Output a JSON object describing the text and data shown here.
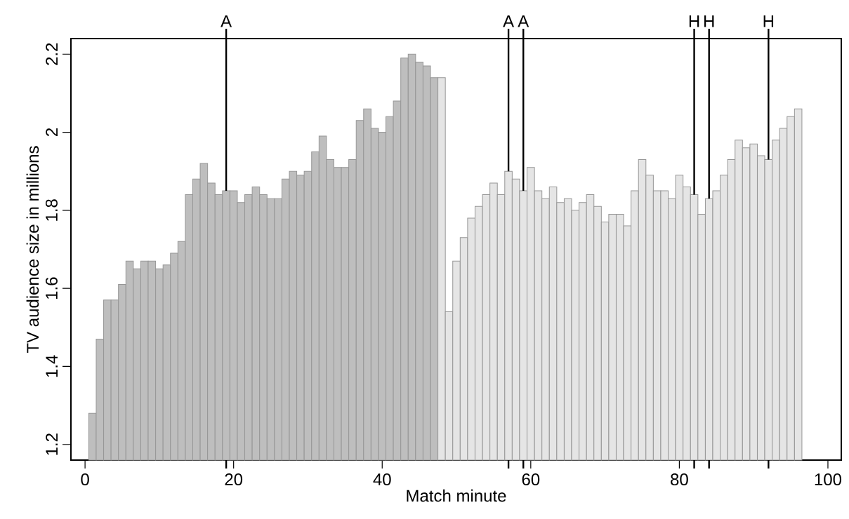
{
  "chart_data": {
    "type": "bar",
    "xlabel": "Match minute",
    "ylabel": "TV audience size in millions",
    "xlim": [
      -1.9,
      101.8
    ],
    "ylim": [
      1.16,
      2.24
    ],
    "xticks": [
      0,
      20,
      40,
      60,
      80,
      100
    ],
    "yticks": [
      1.2,
      1.4,
      1.6,
      1.8,
      2,
      2.2
    ],
    "series": [
      {
        "color": "#bebebe",
        "x": [
          1,
          2,
          3,
          4,
          5,
          6,
          7,
          8,
          9,
          10,
          11,
          12,
          13,
          14,
          15,
          16,
          17,
          18,
          19,
          20,
          21,
          22,
          23,
          24,
          25,
          26,
          27,
          28,
          29,
          30,
          31,
          32,
          33,
          34,
          35,
          36,
          37,
          38,
          39,
          40,
          41,
          42,
          43,
          44,
          45,
          46,
          47
        ],
        "values": [
          1.28,
          1.47,
          1.57,
          1.57,
          1.61,
          1.67,
          1.65,
          1.67,
          1.67,
          1.65,
          1.66,
          1.69,
          1.72,
          1.84,
          1.88,
          1.92,
          1.87,
          1.84,
          1.85,
          1.85,
          1.82,
          1.84,
          1.86,
          1.84,
          1.83,
          1.83,
          1.88,
          1.9,
          1.89,
          1.9,
          1.95,
          1.99,
          1.93,
          1.91,
          1.91,
          1.93,
          2.03,
          2.06,
          2.01,
          2.0,
          2.04,
          2.08,
          2.19,
          2.2,
          2.18,
          2.17,
          2.14
        ]
      },
      {
        "color": "#e5e5e5",
        "x": [
          48,
          49,
          50,
          51,
          52,
          53,
          54,
          55,
          56,
          57,
          58,
          59,
          60,
          61,
          62,
          63,
          64,
          65,
          66,
          67,
          68,
          69,
          70,
          71,
          72,
          73,
          74,
          75,
          76,
          77,
          78,
          79,
          80,
          81,
          82,
          83,
          84,
          85,
          86,
          87,
          88,
          89,
          90,
          91,
          92,
          93,
          94,
          95,
          96
        ],
        "values": [
          2.14,
          1.54,
          1.67,
          1.73,
          1.78,
          1.81,
          1.84,
          1.87,
          1.84,
          1.9,
          1.88,
          1.85,
          1.91,
          1.85,
          1.83,
          1.86,
          1.82,
          1.83,
          1.8,
          1.82,
          1.84,
          1.81,
          1.77,
          1.79,
          1.79,
          1.76,
          1.85,
          1.93,
          1.89,
          1.85,
          1.85,
          1.83,
          1.89,
          1.86,
          1.84,
          1.79,
          1.83,
          1.85,
          1.89,
          1.93,
          1.98,
          1.96,
          1.97,
          1.94,
          1.93,
          1.98,
          2.01,
          2.04,
          2.06
        ]
      }
    ],
    "ref_lines": [
      {
        "axis": "x",
        "value": 19,
        "label": "A",
        "color": "#000000"
      },
      {
        "axis": "x",
        "value": 57,
        "label": "A",
        "color": "#000000"
      },
      {
        "axis": "x",
        "value": 59,
        "label": "A",
        "color": "#000000"
      },
      {
        "axis": "x",
        "value": 82,
        "label": "H",
        "color": "#000000"
      },
      {
        "axis": "x",
        "value": 84,
        "label": "H",
        "color": "#000000"
      },
      {
        "axis": "x",
        "value": 92,
        "label": "H",
        "color": "#000000"
      }
    ]
  }
}
